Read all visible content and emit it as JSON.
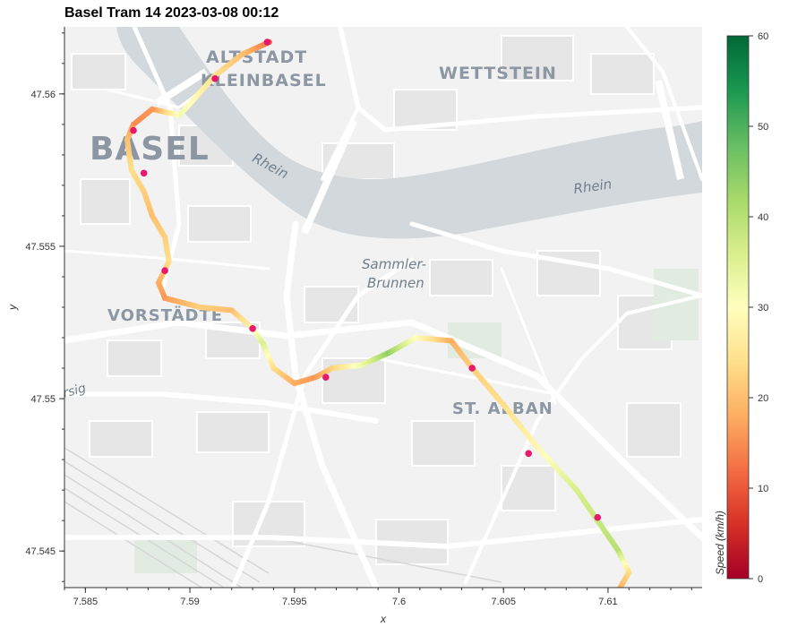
{
  "title": "Basel Tram 14 2023-03-08 00:12",
  "axes": {
    "xlabel": "x",
    "ylabel": "y",
    "x_range": [
      7.584,
      7.6145
    ],
    "y_range": [
      47.5438,
      47.5622
    ],
    "x_ticks": [
      7.585,
      7.59,
      7.595,
      7.6,
      7.605,
      7.61
    ],
    "x_tick_labels": [
      "7.585",
      "7.59",
      "7.595",
      "7.6",
      "7.605",
      "7.61"
    ],
    "y_ticks": [
      47.545,
      47.55,
      47.555,
      47.56
    ],
    "y_tick_labels": [
      "47.545",
      "47.55",
      "47.555",
      "47.56"
    ]
  },
  "map_labels": {
    "altstadt": "ALTSTADT",
    "kleinbasel": "KLEINBASEL",
    "wettstein": "WETTSTEIN",
    "basel": "BASEL",
    "rhein_1": "Rhein",
    "rhein_2": "Rhein",
    "sammler": "Sammler-",
    "brunnen": "Brunnen",
    "vorstaedte": "VORSTÄDTE",
    "st_alban": "ST. ALBAN",
    "rsig": "rsig"
  },
  "colorbar": {
    "label": "Speed (km/h)",
    "min": 0,
    "max": 60,
    "ticks": [
      0,
      10,
      20,
      30,
      40,
      50,
      60
    ],
    "tick_labels": [
      "0",
      "10",
      "20",
      "30",
      "40",
      "50",
      "60"
    ],
    "colormap": "RdYlGn",
    "colors": [
      "#a50026",
      "#d73027",
      "#f46d43",
      "#fdae61",
      "#fee08b",
      "#ffffbf",
      "#d9ef8b",
      "#a6d96a",
      "#66bd63",
      "#1a9850",
      "#006837"
    ]
  },
  "chart_data": {
    "type": "scatter",
    "title": "Basel Tram 14 2023-03-08 00:12",
    "xlabel": "x",
    "ylabel": "y",
    "xlim": [
      7.584,
      7.6145
    ],
    "ylim": [
      47.5438,
      47.5622
    ],
    "color_variable": "Speed (km/h)",
    "track": [
      {
        "x": 7.5938,
        "y": 47.5617,
        "speed": 12
      },
      {
        "x": 7.5925,
        "y": 47.5613,
        "speed": 20
      },
      {
        "x": 7.5912,
        "y": 47.5606,
        "speed": 24
      },
      {
        "x": 7.5895,
        "y": 47.5593,
        "speed": 32
      },
      {
        "x": 7.5882,
        "y": 47.5595,
        "speed": 16
      },
      {
        "x": 7.5873,
        "y": 47.559,
        "speed": 15
      },
      {
        "x": 7.587,
        "y": 47.5585,
        "speed": 20
      },
      {
        "x": 7.5872,
        "y": 47.5575,
        "speed": 24
      },
      {
        "x": 7.5878,
        "y": 47.5568,
        "speed": 22
      },
      {
        "x": 7.5882,
        "y": 47.556,
        "speed": 20
      },
      {
        "x": 7.5888,
        "y": 47.5553,
        "speed": 22
      },
      {
        "x": 7.589,
        "y": 47.5545,
        "speed": 24
      },
      {
        "x": 7.5885,
        "y": 47.5538,
        "speed": 18
      },
      {
        "x": 7.5888,
        "y": 47.5533,
        "speed": 16
      },
      {
        "x": 7.5905,
        "y": 47.553,
        "speed": 22
      },
      {
        "x": 7.592,
        "y": 47.5529,
        "speed": 20
      },
      {
        "x": 7.593,
        "y": 47.5523,
        "speed": 28
      },
      {
        "x": 7.5935,
        "y": 47.5518,
        "speed": 36
      },
      {
        "x": 7.594,
        "y": 47.551,
        "speed": 24
      },
      {
        "x": 7.595,
        "y": 47.5505,
        "speed": 18
      },
      {
        "x": 7.596,
        "y": 47.5507,
        "speed": 16
      },
      {
        "x": 7.5968,
        "y": 47.551,
        "speed": 22
      },
      {
        "x": 7.5982,
        "y": 47.5511,
        "speed": 32
      },
      {
        "x": 7.5995,
        "y": 47.5515,
        "speed": 44
      },
      {
        "x": 7.6008,
        "y": 47.552,
        "speed": 30
      },
      {
        "x": 7.6025,
        "y": 47.5519,
        "speed": 18
      },
      {
        "x": 7.6035,
        "y": 47.551,
        "speed": 22
      },
      {
        "x": 7.605,
        "y": 47.5498,
        "speed": 24
      },
      {
        "x": 7.6065,
        "y": 47.5485,
        "speed": 28
      },
      {
        "x": 7.6085,
        "y": 47.547,
        "speed": 36
      },
      {
        "x": 7.6095,
        "y": 47.546,
        "speed": 38
      },
      {
        "x": 7.6105,
        "y": 47.545,
        "speed": 40
      },
      {
        "x": 7.611,
        "y": 47.5443,
        "speed": 24
      },
      {
        "x": 7.6105,
        "y": 47.5437,
        "speed": 18
      }
    ],
    "stops": [
      {
        "x": 7.5937,
        "y": 47.5617,
        "speed": 0
      },
      {
        "x": 7.5912,
        "y": 47.5605,
        "speed": 0
      },
      {
        "x": 7.5873,
        "y": 47.5588,
        "speed": 0
      },
      {
        "x": 7.5878,
        "y": 47.5574,
        "speed": 0
      },
      {
        "x": 7.5888,
        "y": 47.5542,
        "speed": 0
      },
      {
        "x": 7.593,
        "y": 47.5523,
        "speed": 0
      },
      {
        "x": 7.5965,
        "y": 47.5507,
        "speed": 0
      },
      {
        "x": 7.6035,
        "y": 47.551,
        "speed": 0
      },
      {
        "x": 7.6062,
        "y": 47.5482,
        "speed": 0
      },
      {
        "x": 7.6095,
        "y": 47.5461,
        "speed": 0
      },
      {
        "x": 7.6103,
        "y": 47.5437,
        "speed": 0
      }
    ]
  }
}
